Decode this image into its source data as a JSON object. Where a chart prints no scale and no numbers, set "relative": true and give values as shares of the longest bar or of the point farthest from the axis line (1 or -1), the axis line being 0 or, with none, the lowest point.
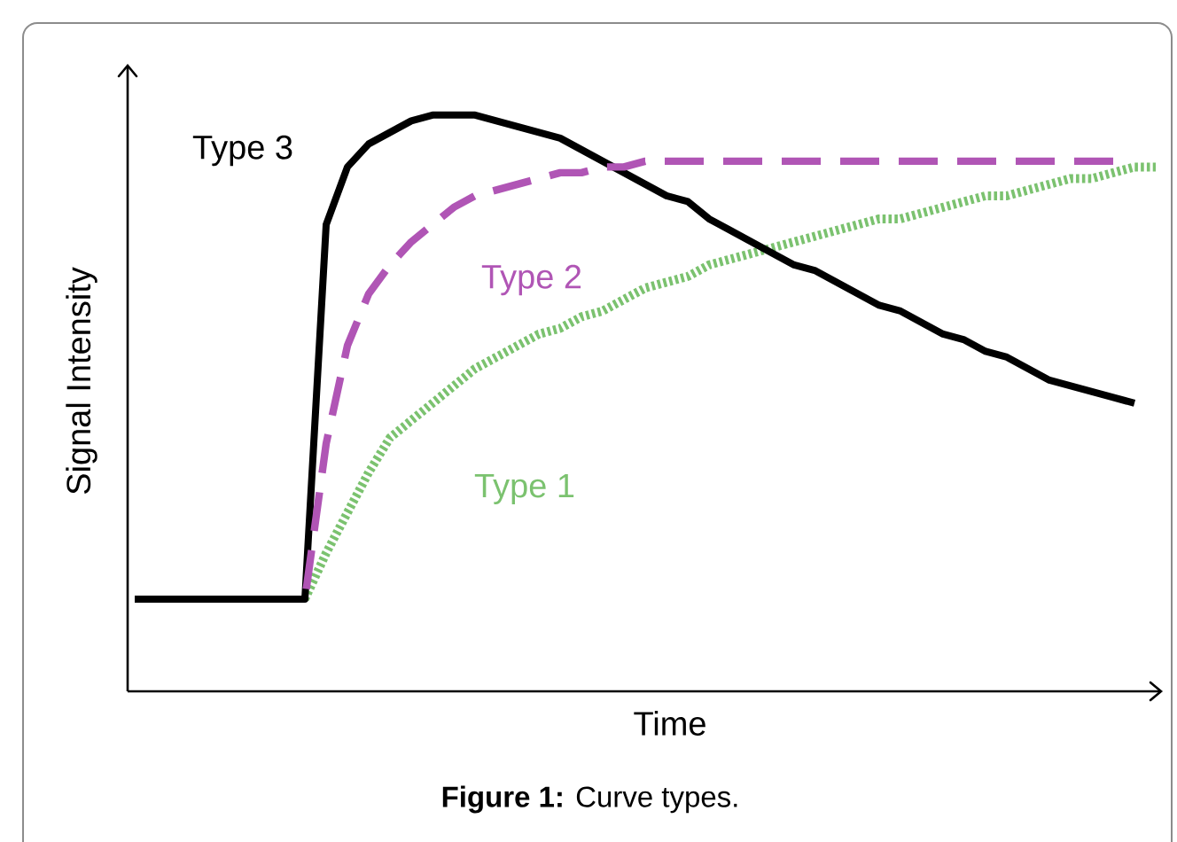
{
  "chart_data": {
    "type": "line",
    "relative": true,
    "xlabel": "Time",
    "ylabel": "Signal Intensity",
    "annotations": [
      "**Figure 1:** Curve types."
    ],
    "categories": [
      null,
      null,
      null,
      null,
      null,
      null,
      null,
      null,
      null,
      null,
      null,
      null,
      null,
      null,
      null,
      null,
      null,
      null,
      null,
      null,
      null,
      null,
      null,
      null,
      null,
      null,
      null,
      null,
      null,
      null,
      null,
      null,
      null,
      null,
      null,
      null,
      null,
      null,
      null,
      null,
      null,
      null,
      null,
      null,
      null,
      null,
      null,
      null,
      null
    ],
    "series": [
      {
        "name": "Type 1",
        "color": "#7bc26f",
        "line_style": "dotted",
        "values": [
          null,
          null,
          null,
          null,
          null,
          null,
          null,
          null,
          0.16,
          0.24,
          0.31,
          0.38,
          0.44,
          0.47,
          0.5,
          0.53,
          0.56,
          0.58,
          0.6,
          0.62,
          0.63,
          0.65,
          0.66,
          0.68,
          0.7,
          0.71,
          0.72,
          0.74,
          0.75,
          0.76,
          0.77,
          0.78,
          0.79,
          0.8,
          0.81,
          0.82,
          0.82,
          0.83,
          0.84,
          0.85,
          0.86,
          0.86,
          0.87,
          0.88,
          0.89,
          0.89,
          0.9,
          0.91,
          0.91
        ]
      },
      {
        "name": "Type 3",
        "color": "#000000",
        "line_style": "solid",
        "values": [
          0.16,
          0.16,
          0.16,
          0.16,
          0.16,
          0.16,
          0.16,
          0.16,
          0.16,
          0.81,
          0.91,
          0.95,
          0.97,
          0.99,
          1.0,
          1.0,
          1.0,
          0.99,
          0.98,
          0.97,
          0.96,
          0.94,
          0.92,
          0.9,
          0.88,
          0.86,
          0.85,
          0.82,
          0.8,
          0.78,
          0.76,
          0.74,
          0.73,
          0.71,
          0.69,
          0.67,
          0.66,
          0.64,
          0.62,
          0.61,
          0.59,
          0.58,
          0.56,
          0.54,
          0.53,
          0.52,
          0.51,
          0.5,
          null
        ]
      },
      {
        "name": "Type 2",
        "color": "#b055b5",
        "line_style": "dashed",
        "values": [
          null,
          null,
          null,
          null,
          null,
          null,
          null,
          null,
          0.16,
          0.43,
          0.6,
          0.69,
          0.74,
          0.78,
          0.81,
          0.84,
          0.86,
          0.87,
          0.88,
          0.89,
          0.9,
          0.9,
          0.91,
          0.91,
          0.92,
          0.92,
          0.92,
          0.92,
          0.92,
          0.92,
          0.92,
          0.92,
          0.92,
          0.92,
          0.92,
          0.92,
          0.92,
          0.92,
          0.92,
          0.92,
          0.92,
          0.92,
          0.92,
          0.92,
          0.92,
          0.92,
          0.92,
          null,
          null
        ]
      }
    ]
  }
}
